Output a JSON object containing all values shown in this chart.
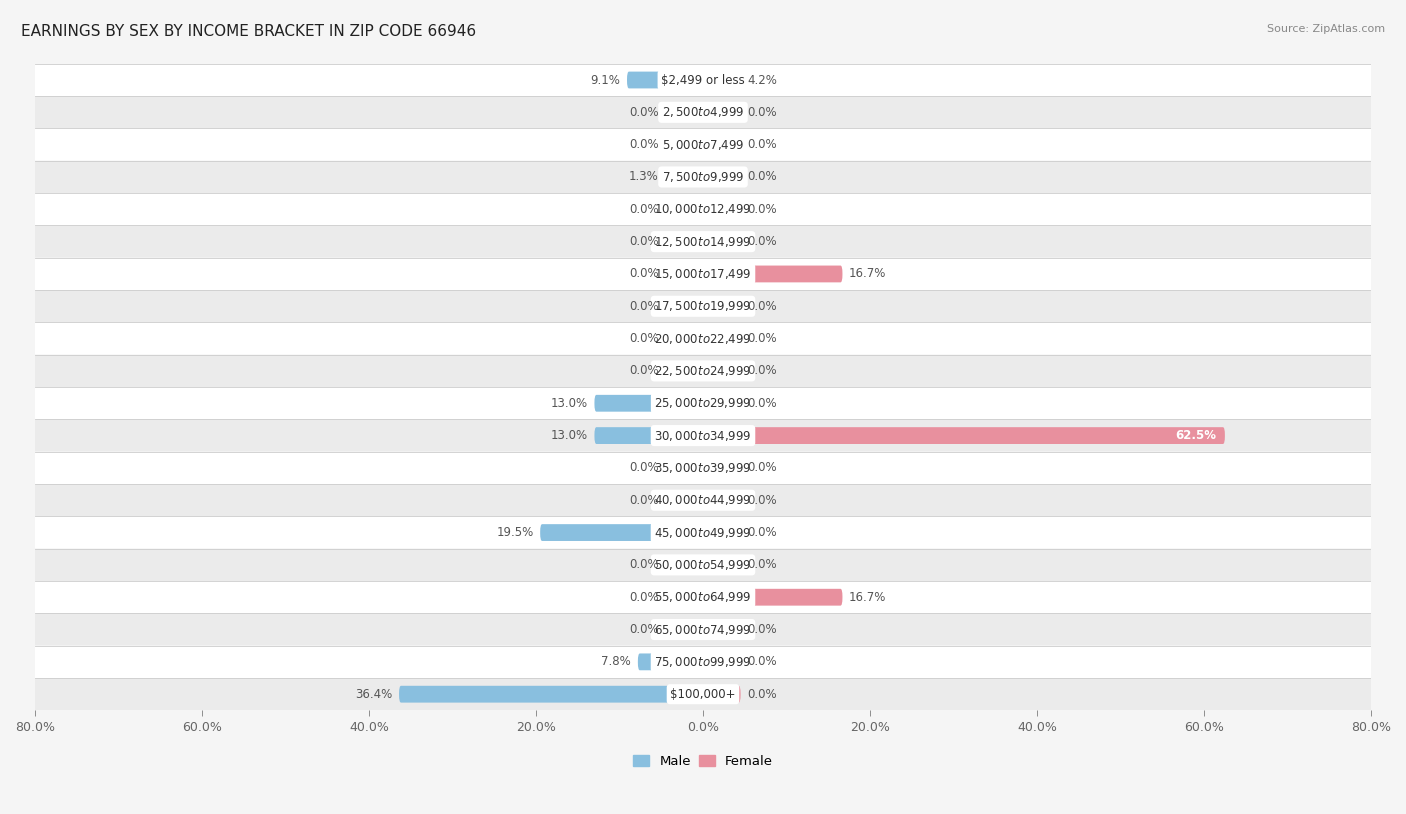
{
  "title": "EARNINGS BY SEX BY INCOME BRACKET IN ZIP CODE 66946",
  "source": "Source: ZipAtlas.com",
  "categories": [
    "$2,499 or less",
    "$2,500 to $4,999",
    "$5,000 to $7,499",
    "$7,500 to $9,999",
    "$10,000 to $12,499",
    "$12,500 to $14,999",
    "$15,000 to $17,499",
    "$17,500 to $19,999",
    "$20,000 to $22,499",
    "$22,500 to $24,999",
    "$25,000 to $29,999",
    "$30,000 to $34,999",
    "$35,000 to $39,999",
    "$40,000 to $44,999",
    "$45,000 to $49,999",
    "$50,000 to $54,999",
    "$55,000 to $64,999",
    "$65,000 to $74,999",
    "$75,000 to $99,999",
    "$100,000+"
  ],
  "male_values": [
    9.1,
    0.0,
    0.0,
    1.3,
    0.0,
    0.0,
    0.0,
    0.0,
    0.0,
    0.0,
    13.0,
    13.0,
    0.0,
    0.0,
    19.5,
    0.0,
    0.0,
    0.0,
    7.8,
    36.4
  ],
  "female_values": [
    4.2,
    0.0,
    0.0,
    0.0,
    0.0,
    0.0,
    16.7,
    0.0,
    0.0,
    0.0,
    0.0,
    62.5,
    0.0,
    0.0,
    0.0,
    0.0,
    16.7,
    0.0,
    0.0,
    0.0
  ],
  "male_color": "#89bfdf",
  "female_color": "#e8909e",
  "xlim": 80.0,
  "min_bar": 4.5,
  "bg_color": "#f5f5f5",
  "row_color_odd": "#ffffff",
  "row_color_even": "#ebebeb",
  "title_fontsize": 11,
  "label_fontsize": 8.5,
  "category_fontsize": 8.5,
  "source_fontsize": 8,
  "axis_fontsize": 9,
  "bar_height": 0.52
}
